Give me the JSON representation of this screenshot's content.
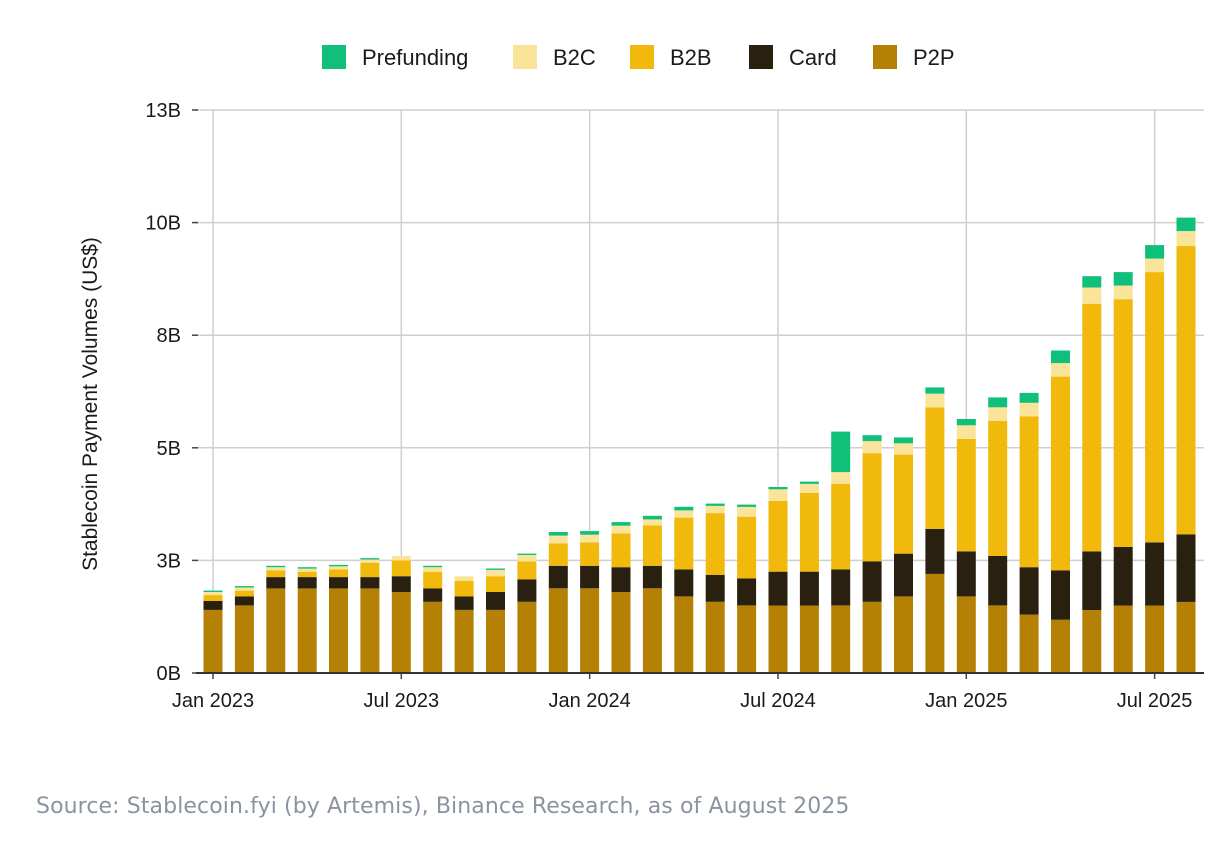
{
  "chart_data": {
    "type": "bar",
    "stacked": true,
    "ylabel": "Stablecoin Payment Volumes (US$)",
    "xlabel": "",
    "ylim": [
      0,
      12500000000
    ],
    "y_ticks": [
      {
        "value": 0,
        "label": "0B"
      },
      {
        "value": 2500000000,
        "label": "3B"
      },
      {
        "value": 5000000000,
        "label": "5B"
      },
      {
        "value": 7500000000,
        "label": "8B"
      },
      {
        "value": 10000000000,
        "label": "10B"
      },
      {
        "value": 12500000000,
        "label": "13B"
      }
    ],
    "x_ticks": [
      {
        "index": 0,
        "label": "Jan 2023"
      },
      {
        "index": 6,
        "label": "Jul 2023"
      },
      {
        "index": 12,
        "label": "Jan 2024"
      },
      {
        "index": 18,
        "label": "Jul 2024"
      },
      {
        "index": 24,
        "label": "Jan 2025"
      },
      {
        "index": 30,
        "label": "Jul 2025"
      }
    ],
    "legend_position": "top-center",
    "categories": [
      "Jan 2023",
      "Feb 2023",
      "Mar 2023",
      "Apr 2023",
      "May 2023",
      "Jun 2023",
      "Jul 2023",
      "Aug 2023",
      "Sep 2023",
      "Oct 2023",
      "Nov 2023",
      "Dec 2023",
      "Jan 2024",
      "Feb 2024",
      "Mar 2024",
      "Apr 2024",
      "May 2024",
      "Jun 2024",
      "Jul 2024",
      "Aug 2024",
      "Sep 2024",
      "Oct 2024",
      "Nov 2024",
      "Dec 2024",
      "Jan 2025",
      "Feb 2025",
      "Mar 2025",
      "Apr 2025",
      "May 2025",
      "Jun 2025",
      "Jul 2025",
      "Aug 2025"
    ],
    "series": [
      {
        "name": "P2P",
        "color": "#b58105",
        "values": [
          1.4,
          1.5,
          1.88,
          1.88,
          1.88,
          1.88,
          1.8,
          1.58,
          1.4,
          1.4,
          1.58,
          1.88,
          1.88,
          1.8,
          1.88,
          1.7,
          1.58,
          1.5,
          1.5,
          1.5,
          1.5,
          1.58,
          1.7,
          2.2,
          1.7,
          1.5,
          1.3,
          1.18,
          1.4,
          1.5,
          1.5,
          1.58
        ]
      },
      {
        "name": "Card",
        "color": "#2a2010",
        "values": [
          0.2,
          0.2,
          0.25,
          0.25,
          0.25,
          0.25,
          0.35,
          0.3,
          0.3,
          0.4,
          0.5,
          0.5,
          0.5,
          0.55,
          0.5,
          0.6,
          0.6,
          0.6,
          0.75,
          0.75,
          0.8,
          0.9,
          0.95,
          1.0,
          1.0,
          1.1,
          1.05,
          1.1,
          1.3,
          1.3,
          1.4,
          1.5
        ]
      },
      {
        "name": "B2B",
        "color": "#f0b90b",
        "values": [
          0.13,
          0.13,
          0.15,
          0.12,
          0.17,
          0.32,
          0.35,
          0.37,
          0.35,
          0.35,
          0.4,
          0.5,
          0.52,
          0.75,
          0.9,
          1.15,
          1.37,
          1.37,
          1.57,
          1.75,
          1.9,
          2.4,
          2.2,
          2.7,
          2.5,
          3.0,
          3.35,
          4.3,
          5.5,
          5.5,
          6.0,
          6.4
        ]
      },
      {
        "name": "B2C",
        "color": "#fae49a",
        "values": [
          0.07,
          0.07,
          0.07,
          0.07,
          0.07,
          0.07,
          0.1,
          0.1,
          0.1,
          0.14,
          0.14,
          0.17,
          0.17,
          0.17,
          0.13,
          0.16,
          0.16,
          0.22,
          0.26,
          0.2,
          0.26,
          0.27,
          0.25,
          0.3,
          0.3,
          0.3,
          0.3,
          0.3,
          0.36,
          0.3,
          0.3,
          0.33
        ]
      },
      {
        "name": "Prefunding",
        "color": "#10c07a",
        "values": [
          0.03,
          0.03,
          0.03,
          0.03,
          0.03,
          0.03,
          0.0,
          0.03,
          0.0,
          0.03,
          0.03,
          0.08,
          0.08,
          0.08,
          0.08,
          0.08,
          0.05,
          0.05,
          0.05,
          0.05,
          0.9,
          0.13,
          0.13,
          0.14,
          0.14,
          0.22,
          0.22,
          0.28,
          0.25,
          0.3,
          0.3,
          0.3
        ]
      }
    ],
    "value_unit": 1000000000
  },
  "legend": [
    {
      "name": "Prefunding",
      "color": "#10c07a"
    },
    {
      "name": "B2C",
      "color": "#fae49a"
    },
    {
      "name": "B2B",
      "color": "#f0b90b"
    },
    {
      "name": "Card",
      "color": "#2a2010"
    },
    {
      "name": "P2P",
      "color": "#b58105"
    }
  ],
  "source": "Source: Stablecoin.fyi (by Artemis), Binance Research, as of August 2025"
}
